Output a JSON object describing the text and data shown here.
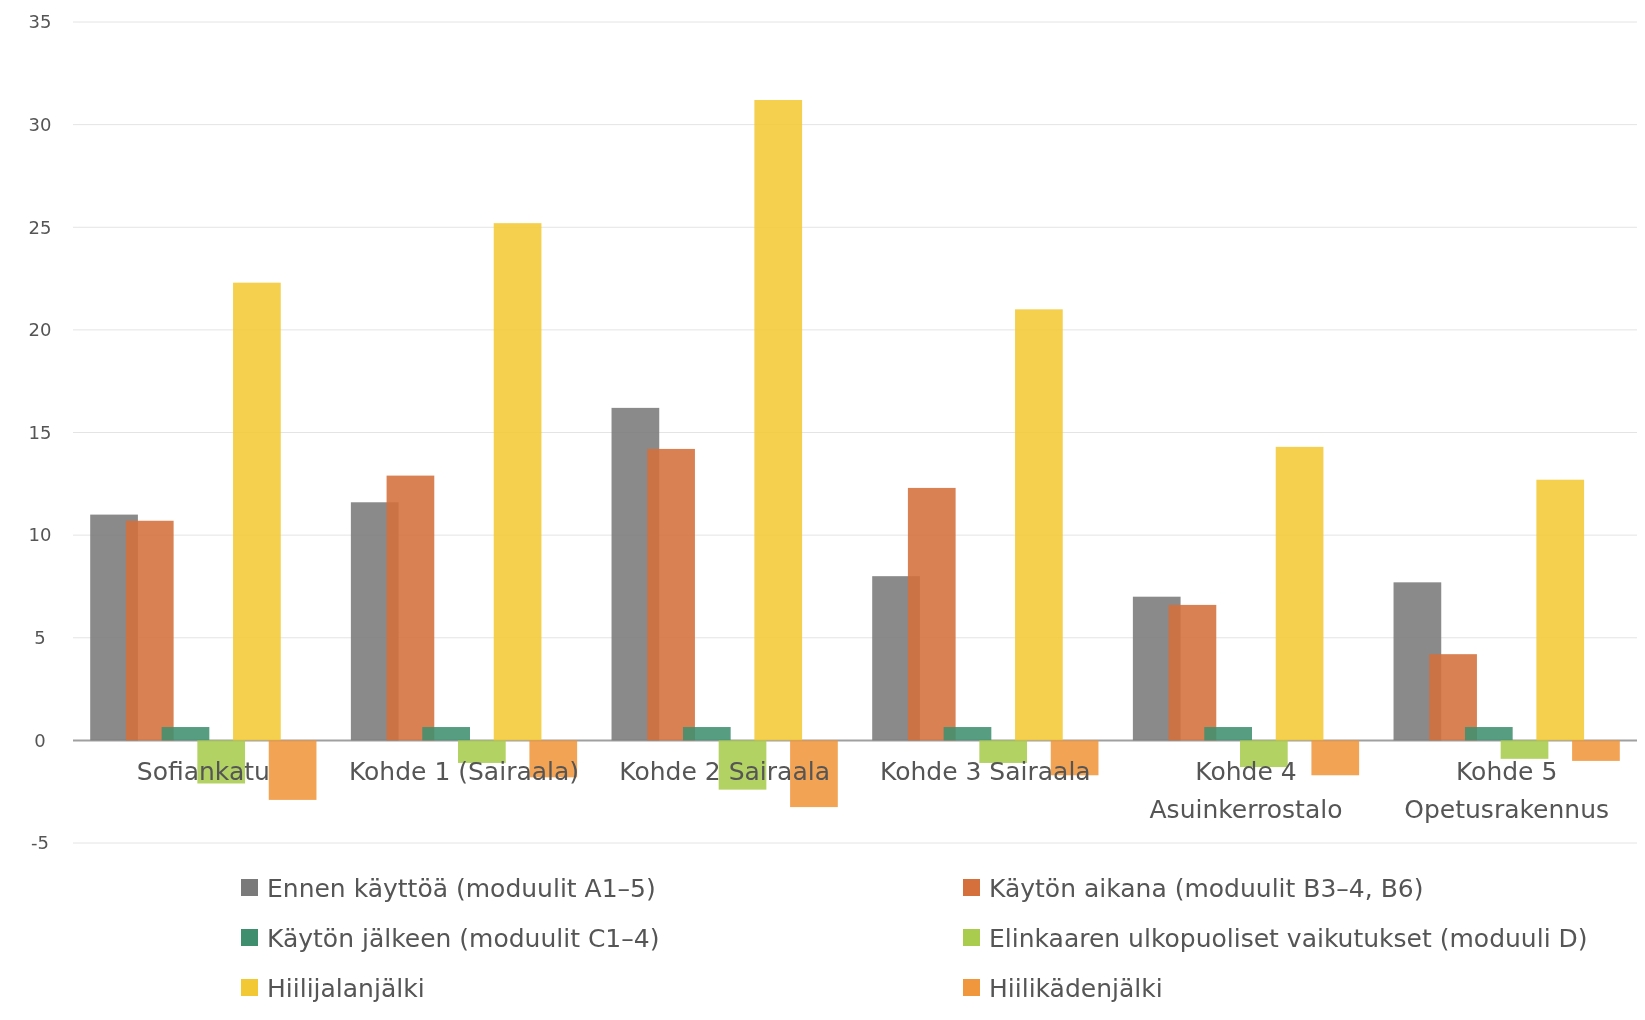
{
  "chart_data": {
    "type": "bar",
    "categories": [
      "Sofiankatu",
      "Kohde 1 (Sairaala)",
      "Kohde 2 Sairaala",
      "Kohde 3 Sairaala",
      "Kohde 4 Asuinkerrostalo",
      "Kohde 5 Opetusrakennus"
    ],
    "series": [
      {
        "name": "Ennen käyttöä (moduulit A1–5)",
        "color": "#7a7a7a",
        "values": [
          11.0,
          11.6,
          16.2,
          8.0,
          7.0,
          7.7
        ]
      },
      {
        "name": "Käytön aikana (moduulit B3–4, B6)",
        "color": "#d5703c",
        "values": [
          10.7,
          12.9,
          14.2,
          12.3,
          6.6,
          4.2
        ]
      },
      {
        "name": "Käytön jälkeen (moduulit C1–4)",
        "color": "#3f8f6f",
        "values": [
          0.65,
          0.65,
          0.65,
          0.65,
          0.65,
          0.65
        ]
      },
      {
        "name": "Elinkaaren ulkopuoliset vaikutukset (moduuli D)",
        "color": "#a9cc4f",
        "values": [
          -2.1,
          -1.1,
          -2.4,
          -1.1,
          -1.3,
          -0.9
        ]
      },
      {
        "name": "Hiilijalanjälki",
        "color": "#f2c935",
        "values": [
          22.3,
          25.2,
          31.2,
          21.0,
          14.3,
          12.7
        ]
      },
      {
        "name": "Hiilikädenjälki",
        "color": "#f0963c",
        "values": [
          -2.9,
          -1.8,
          -3.25,
          -1.7,
          -1.7,
          -1.0
        ]
      }
    ],
    "ylim": [
      -5,
      35
    ],
    "yticks": [
      -5,
      0,
      5,
      10,
      15,
      20,
      25,
      30,
      35
    ],
    "grid": "y",
    "legend": "bottom"
  }
}
